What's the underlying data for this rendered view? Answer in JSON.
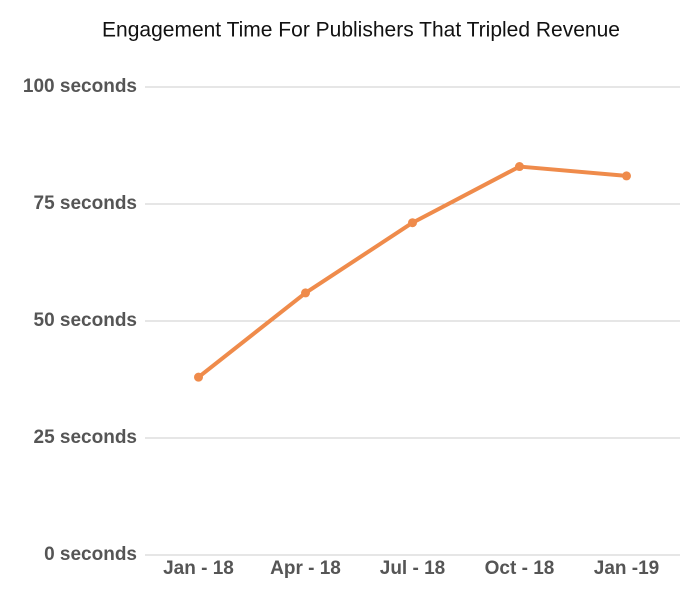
{
  "chart_data": {
    "type": "line",
    "title": "Engagement Time For Publishers That Tripled Revenue",
    "categories": [
      "Jan - 18",
      "Apr - 18",
      "Jul - 18",
      "Oct - 18",
      "Jan -19"
    ],
    "series": [
      {
        "color": "#ef8b4b",
        "values": [
          38,
          56,
          71,
          83,
          81
        ]
      }
    ],
    "ylim": [
      0,
      100
    ],
    "yticks": [
      {
        "value": 0,
        "label": "0 seconds"
      },
      {
        "value": 25,
        "label": "25 seconds"
      },
      {
        "value": 50,
        "label": "50 seconds"
      },
      {
        "value": 75,
        "label": "75 seconds"
      },
      {
        "value": 100,
        "label": "100 seconds"
      }
    ],
    "grid": true
  }
}
